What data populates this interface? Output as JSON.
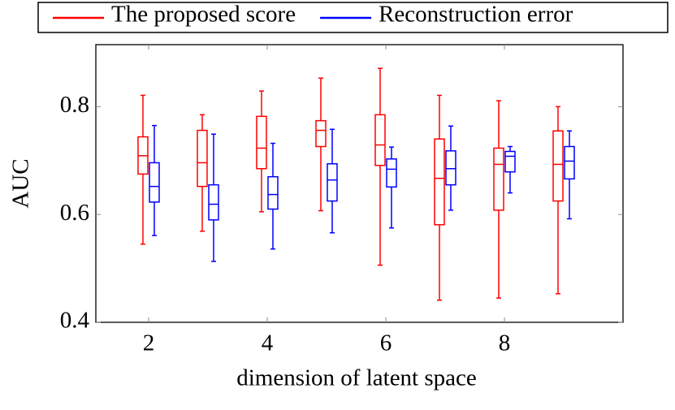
{
  "chart_data": {
    "type": "box",
    "x_label": "dimension of latent space",
    "y_label": "AUC",
    "x": [
      2,
      3,
      4,
      5,
      6,
      7,
      8,
      9
    ],
    "series": [
      {
        "name": "The proposed score",
        "color": "#ff0000",
        "high": [
          0.821,
          0.785,
          0.829,
          0.853,
          0.871,
          0.821,
          0.811,
          0.8
        ],
        "q3": [
          0.744,
          0.756,
          0.782,
          0.774,
          0.785,
          0.74,
          0.723,
          0.755
        ],
        "median": [
          0.709,
          0.696,
          0.723,
          0.756,
          0.729,
          0.667,
          0.693,
          0.693
        ],
        "q1": [
          0.675,
          0.652,
          0.685,
          0.726,
          0.691,
          0.581,
          0.608,
          0.625
        ],
        "low": [
          0.545,
          0.569,
          0.605,
          0.607,
          0.506,
          0.441,
          0.445,
          0.453
        ]
      },
      {
        "name": "Reconstruction error",
        "color": "#0000ff",
        "high": [
          0.765,
          0.749,
          0.732,
          0.758,
          0.725,
          0.764,
          0.726,
          0.755
        ],
        "q3": [
          0.696,
          0.655,
          0.67,
          0.694,
          0.703,
          0.718,
          0.717,
          0.726
        ],
        "median": [
          0.652,
          0.619,
          0.637,
          0.664,
          0.684,
          0.685,
          0.708,
          0.699
        ],
        "q1": [
          0.623,
          0.59,
          0.61,
          0.625,
          0.651,
          0.655,
          0.679,
          0.666
        ],
        "low": [
          0.561,
          0.513,
          0.536,
          0.566,
          0.575,
          0.608,
          0.64,
          0.592
        ]
      }
    ],
    "xlim": [
      1.11,
      10
    ],
    "ylim": [
      0.4,
      0.915
    ],
    "xticks": [
      2,
      4,
      6,
      8
    ],
    "yticks": [
      0.4,
      0.6,
      0.8
    ],
    "legend": "top"
  }
}
